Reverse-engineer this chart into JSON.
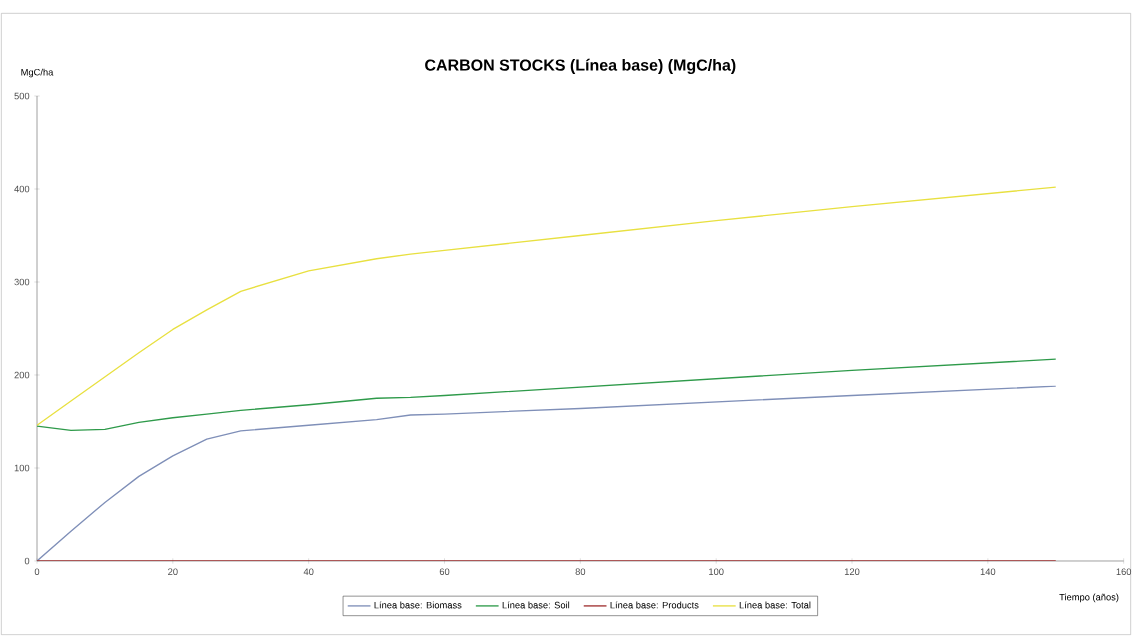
{
  "chart_data": {
    "type": "line",
    "title": "CARBON STOCKS (Línea base) (MgC/ha)",
    "xlabel": "Tiempo (años)",
    "ylabel": "MgC/ha",
    "x": [
      0,
      5,
      10,
      15,
      20,
      25,
      30,
      40,
      50,
      55,
      60,
      80,
      100,
      120,
      150
    ],
    "series": [
      {
        "name": "Línea base: Biomass",
        "color": "#7f8fb8",
        "values": [
          0,
          32,
          63,
          91,
          113,
          131,
          140,
          146,
          152,
          157,
          158,
          164,
          171,
          178,
          188
        ]
      },
      {
        "name": "Línea base: Soil",
        "color": "#2e9a4a",
        "values": [
          145,
          140.5,
          141.5,
          149,
          154,
          158,
          162,
          168,
          175,
          176,
          178,
          187,
          196,
          205,
          217
        ]
      },
      {
        "name": "Línea base: Products",
        "color": "#a03030",
        "values": [
          0,
          0,
          0,
          0,
          0,
          0,
          0,
          0,
          0,
          0,
          0,
          0,
          0,
          0,
          0
        ]
      },
      {
        "name": "Línea base: Total",
        "color": "#e8e040",
        "values": [
          146,
          172,
          198,
          224,
          249,
          270,
          290,
          312,
          325,
          330,
          334,
          350,
          366,
          381,
          402
        ]
      }
    ],
    "xlim": [
      0,
      160
    ],
    "ylim": [
      0,
      500
    ],
    "xticks": [
      0,
      20,
      40,
      60,
      80,
      100,
      120,
      140,
      160
    ],
    "yticks": [
      0,
      100,
      200,
      300,
      400,
      500
    ],
    "grid": false,
    "legend": "bottom"
  }
}
